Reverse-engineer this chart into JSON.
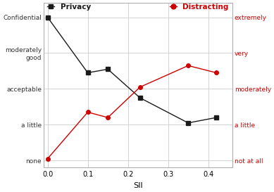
{
  "x_privacy": [
    0.0,
    0.1,
    0.15,
    0.23,
    0.35,
    0.42
  ],
  "y_privacy": [
    4.0,
    2.45,
    2.55,
    1.75,
    1.05,
    1.2
  ],
  "x_distract": [
    0.0,
    0.1,
    0.15,
    0.23,
    0.35,
    0.42
  ],
  "y_distract": [
    0.05,
    1.35,
    1.2,
    2.05,
    2.65,
    2.45
  ],
  "left_yticks": [
    0,
    1,
    2,
    3,
    4
  ],
  "left_yticklabels": [
    "none",
    "a little",
    "acceptable",
    "moderately\ngood",
    "Confidential"
  ],
  "right_yticks": [
    0,
    1,
    2,
    3,
    4
  ],
  "right_yticklabels": [
    "not at all",
    "a little",
    "moderately",
    "very",
    "extremely"
  ],
  "xlabel": "SII",
  "xticks": [
    0.0,
    0.1,
    0.2,
    0.3,
    0.4
  ],
  "ylim": [
    -0.2,
    4.4
  ],
  "xlim": [
    -0.01,
    0.46
  ],
  "privacy_color": "#1a1a1a",
  "distract_color": "#cc0000",
  "legend_privacy": "Privacy",
  "legend_distract": "Distracting",
  "grid_color": "#cccccc",
  "background_color": "#ffffff"
}
